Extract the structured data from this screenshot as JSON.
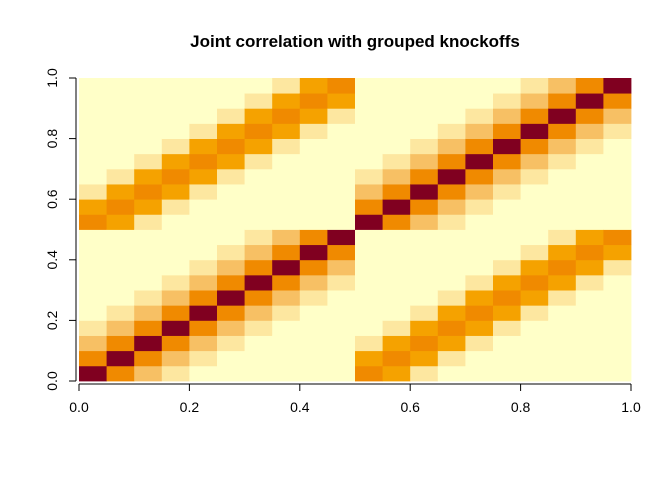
{
  "chart_data": {
    "type": "heatmap",
    "title": "Joint correlation with grouped knockoffs",
    "xlabel": "",
    "ylabel": "",
    "xlim": [
      0,
      1
    ],
    "ylim": [
      0,
      1
    ],
    "x_ticks": [
      "0.0",
      "0.2",
      "0.4",
      "0.6",
      "0.8",
      "1.0"
    ],
    "y_ticks": [
      "0.0",
      "0.2",
      "0.4",
      "0.6",
      "0.8",
      "1.0"
    ],
    "n_vars": 20,
    "n_original": 10,
    "grid": false,
    "color_scale": [
      "#ffffc8",
      "#fff5b0",
      "#fde7a0",
      "#f7c064",
      "#f5a200",
      "#f08a00",
      "#e86200",
      "#800020"
    ],
    "color_scale_note": "heat colors: light yellow (low) to dark red (high)"
  }
}
